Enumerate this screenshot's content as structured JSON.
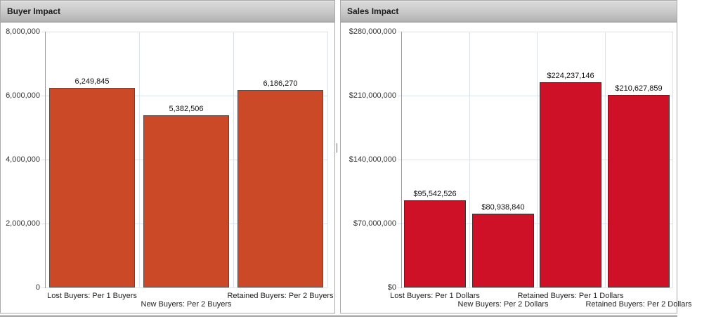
{
  "panels": [
    {
      "title": "Buyer Impact"
    },
    {
      "title": "Sales Impact"
    }
  ],
  "chart_data": [
    {
      "type": "bar",
      "title": "Buyer Impact",
      "categories": [
        "Lost Buyers: Per 1 Buyers",
        "New Buyers: Per 2 Buyers",
        "Retained Buyers: Per 2 Buyers"
      ],
      "values": [
        6249845,
        5382506,
        6186270
      ],
      "value_labels": [
        "6,249,845",
        "5,382,506",
        "6,186,270"
      ],
      "ylim": [
        0,
        8000000
      ],
      "yticks": [
        "8,000,000",
        "6,000,000",
        "4,000,000",
        "2,000,000",
        "0"
      ],
      "xlabel": "",
      "ylabel": "",
      "grid": true,
      "legend": "none",
      "bar_color": "#cc4928",
      "bar_border_color": "#4d4d4d"
    },
    {
      "type": "bar",
      "title": "Sales Impact",
      "categories": [
        "Lost Buyers: Per 1 Dollars",
        "New Buyers: Per 2 Dollars",
        "Retained Buyers: Per 1 Dollars",
        "Retained Buyers: Per 2 Dollars"
      ],
      "values": [
        95542526,
        80938840,
        224237146,
        210627859
      ],
      "value_labels": [
        "$95,542,526",
        "$80,938,840",
        "$224,237,146",
        "$210,627,859"
      ],
      "ylim": [
        0,
        280000000
      ],
      "yticks": [
        "$280,000,000",
        "$210,000,000",
        "$140,000,000",
        "$70,000,000",
        "$0"
      ],
      "xlabel": "",
      "ylabel": "",
      "grid": true,
      "legend": "none",
      "bar_color": "#ce1126",
      "bar_border_color": "#333333"
    }
  ]
}
